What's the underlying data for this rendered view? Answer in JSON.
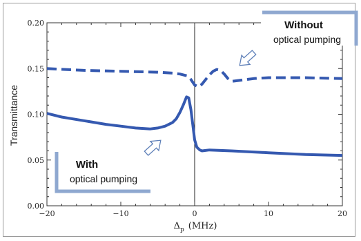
{
  "chart_data": {
    "type": "line",
    "title": "",
    "xlabel_symbol": "Δ",
    "xlabel_sub": "p",
    "xlabel_unit": "(MHz)",
    "ylabel": "Transmittance",
    "xlim": [
      -20,
      20
    ],
    "ylim": [
      0.0,
      0.2
    ],
    "x_ticks": [
      -20,
      -10,
      0,
      10,
      20
    ],
    "x_tick_labels": [
      "−20",
      "−10",
      "0",
      "10",
      "20"
    ],
    "y_ticks": [
      0.0,
      0.05,
      0.1,
      0.15,
      0.2
    ],
    "y_tick_labels": [
      "0.00",
      "0.05",
      "0.10",
      "0.15",
      "0.20"
    ],
    "grid": false,
    "series": [
      {
        "style": "dashed",
        "color": "#3559b0",
        "points": [
          [
            -20,
            0.15
          ],
          [
            -15,
            0.148
          ],
          [
            -10,
            0.147
          ],
          [
            -5,
            0.146
          ],
          [
            -3,
            0.145
          ],
          [
            -2,
            0.144
          ],
          [
            -1,
            0.142
          ],
          [
            -0.5,
            0.138
          ],
          [
            0,
            0.132
          ],
          [
            0.5,
            0.13
          ],
          [
            1,
            0.133
          ],
          [
            1.5,
            0.138
          ],
          [
            2,
            0.143
          ],
          [
            2.5,
            0.147
          ],
          [
            3,
            0.149
          ],
          [
            3.5,
            0.148
          ],
          [
            4,
            0.144
          ],
          [
            4.5,
            0.139
          ],
          [
            5,
            0.136
          ],
          [
            6,
            0.137
          ],
          [
            8,
            0.139
          ],
          [
            10,
            0.14
          ],
          [
            15,
            0.14
          ],
          [
            20,
            0.139
          ]
        ]
      },
      {
        "style": "solid",
        "color": "#3559b0",
        "points": [
          [
            -20,
            0.101
          ],
          [
            -18,
            0.097
          ],
          [
            -15,
            0.093
          ],
          [
            -12,
            0.089
          ],
          [
            -10,
            0.087
          ],
          [
            -8,
            0.085
          ],
          [
            -6,
            0.084
          ],
          [
            -5,
            0.085
          ],
          [
            -4,
            0.087
          ],
          [
            -3,
            0.091
          ],
          [
            -2.5,
            0.095
          ],
          [
            -2,
            0.102
          ],
          [
            -1.5,
            0.111
          ],
          [
            -1.1,
            0.119
          ],
          [
            -0.8,
            0.118
          ],
          [
            -0.5,
            0.105
          ],
          [
            -0.2,
            0.085
          ],
          [
            0,
            0.072
          ],
          [
            0.3,
            0.064
          ],
          [
            0.7,
            0.061
          ],
          [
            1,
            0.06
          ],
          [
            2,
            0.061
          ],
          [
            5,
            0.06
          ],
          [
            10,
            0.058
          ],
          [
            15,
            0.056
          ],
          [
            20,
            0.055
          ]
        ]
      }
    ],
    "vline_x": 0
  },
  "annotations": {
    "without_bold": "Without",
    "without_text": "optical pumping",
    "with_bold": "With",
    "with_text": "optical pumping"
  }
}
